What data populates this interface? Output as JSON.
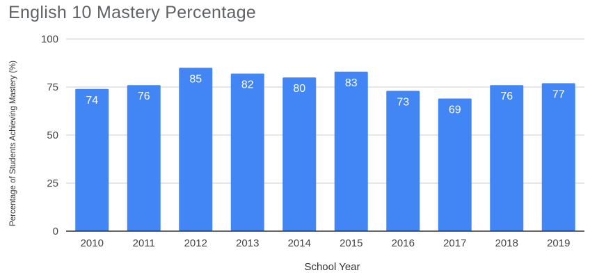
{
  "chart_data": {
    "type": "bar",
    "title": "English 10 Mastery Percentage",
    "xlabel": "School Year",
    "ylabel": "Percentage of Students Achieving Mastery (%)",
    "categories": [
      "2010",
      "2011",
      "2012",
      "2013",
      "2014",
      "2015",
      "2016",
      "2017",
      "2018",
      "2019"
    ],
    "values": [
      74,
      76,
      85,
      82,
      80,
      83,
      73,
      69,
      76,
      77
    ],
    "ylim": [
      0,
      100
    ],
    "yticks": [
      0,
      25,
      50,
      75,
      100
    ],
    "data_labels": true,
    "grid": true,
    "legend": "none",
    "colors": {
      "bar": "#4285f4",
      "grid": "#cccccc",
      "axis": "#333333",
      "text": "#444444",
      "label": "#ffffff",
      "title": "#5f6368"
    }
  }
}
